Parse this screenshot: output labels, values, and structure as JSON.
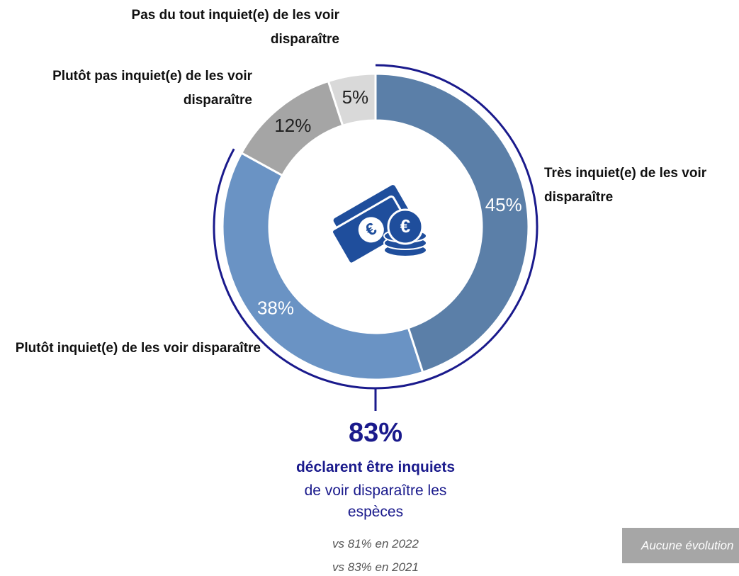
{
  "chart_data": {
    "type": "donut",
    "categories": [
      "Très inquiet(e) de les voir disparaître",
      "Plutôt inquiet(e) de les voir disparaître",
      "Plutôt pas inquiet(e) de les voir disparaître",
      "Pas du tout inquiet(e) de les voir disparaître"
    ],
    "values": [
      45,
      38,
      12,
      5
    ],
    "value_labels": [
      "45%",
      "38%",
      "12%",
      "5%"
    ],
    "colors": [
      "#5b7fa8",
      "#6a93c4",
      "#a5a5a5",
      "#d9d9d9"
    ],
    "annotations": {
      "total": "83%",
      "headline": "déclarent être inquiets",
      "text": "de voir disparaître les espèces",
      "comparisons": [
        "vs 81% en 2022",
        "vs 83% en 2021"
      ],
      "badge": "Aucune évolution"
    }
  }
}
